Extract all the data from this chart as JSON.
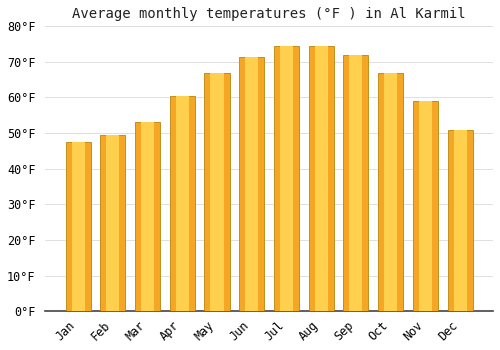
{
  "title": "Average monthly temperatures (°F ) in Al Karmil",
  "months": [
    "Jan",
    "Feb",
    "Mar",
    "Apr",
    "May",
    "Jun",
    "Jul",
    "Aug",
    "Sep",
    "Oct",
    "Nov",
    "Dec"
  ],
  "values": [
    47.5,
    49.5,
    53.0,
    60.5,
    67.0,
    71.5,
    74.5,
    74.5,
    72.0,
    67.0,
    59.0,
    51.0
  ],
  "bar_color_outer": "#F5A623",
  "bar_color_inner": "#FFD04D",
  "bar_edge_color": "#B8860B",
  "ylim": [
    0,
    80
  ],
  "yticks": [
    0,
    10,
    20,
    30,
    40,
    50,
    60,
    70,
    80
  ],
  "background_color": "#FFFFFF",
  "grid_color": "#E0E0E0",
  "title_fontsize": 10,
  "tick_fontsize": 8.5,
  "bar_width": 0.72
}
